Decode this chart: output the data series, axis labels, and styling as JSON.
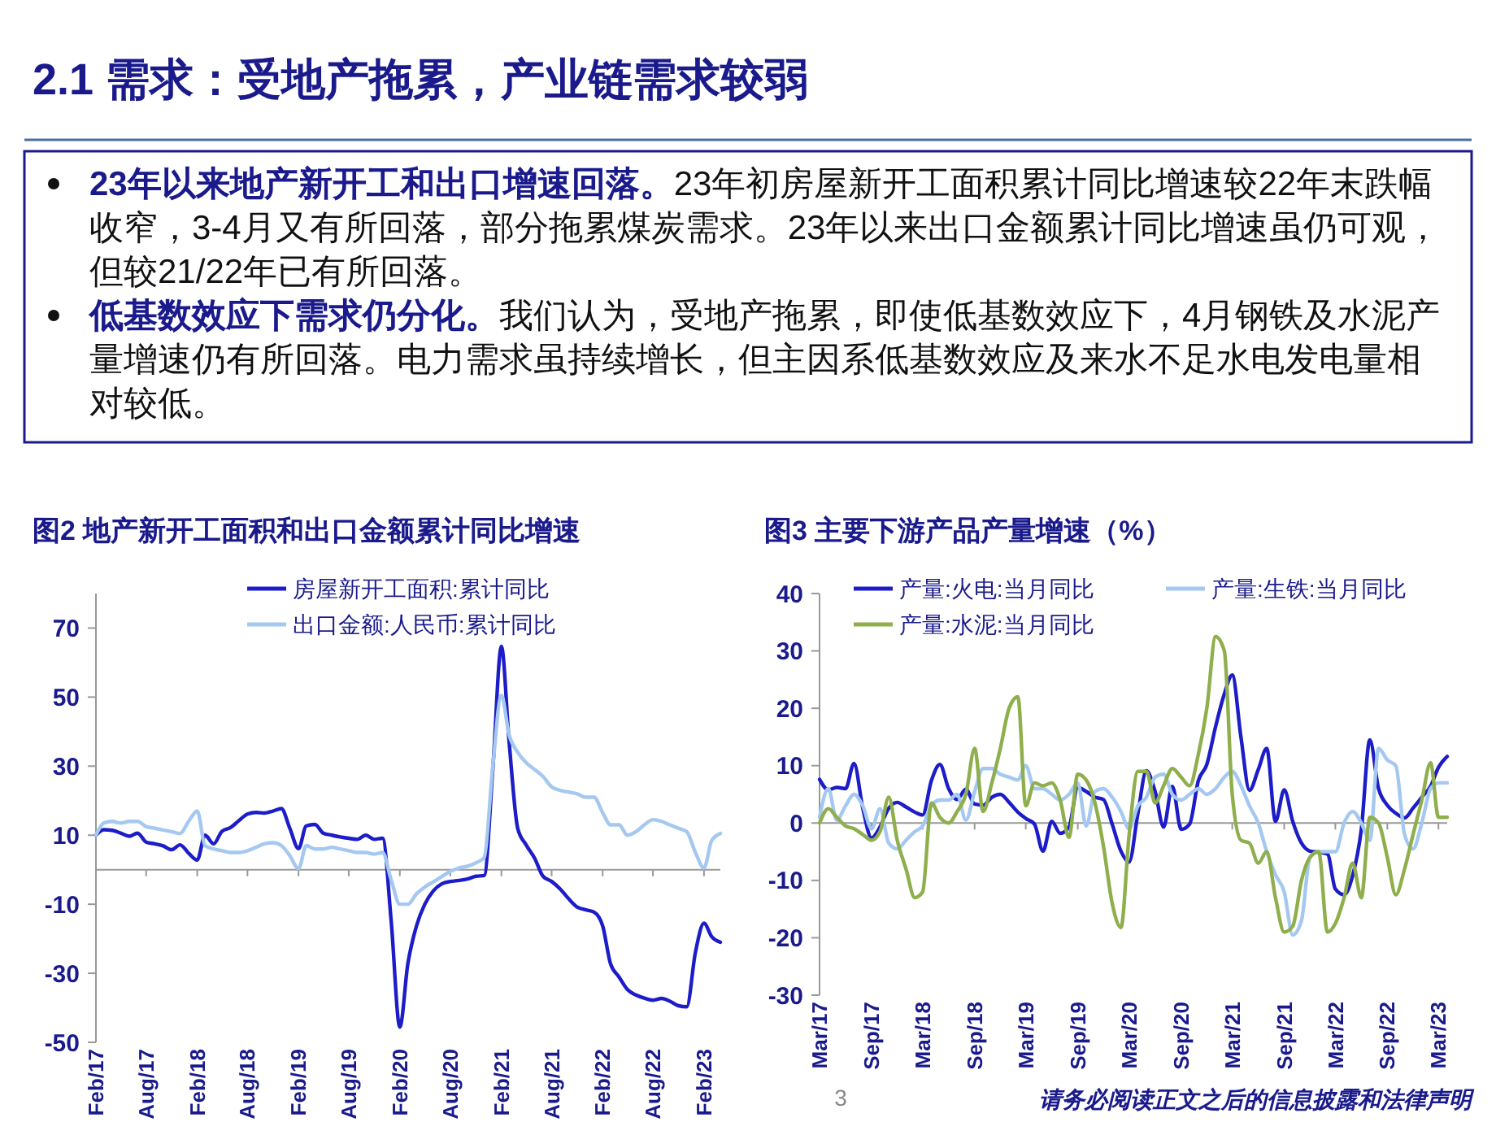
{
  "chart_data": [
    {
      "type": "other",
      "title": "2.1 需求：受地产拖累，产业链需求较弱",
      "annotations": [
        "23年以来地产新开工和出口增速回落。",
        "23年初房屋新开工面积累计同比增速较22年末跌幅收窄，3-4月又有所回落，部分拖累煤炭需求。23年以来出口金额累计同比增速虽仍可观，但较21/22年已有所回落。",
        "低基数效应下需求仍分化。",
        "我们认为，受地产拖累，即使低基数效应下，4月钢铁及水泥产量增速仍有所回落。电力需求虽持续增长，但主因系低基数效应及来水不足水电发电量相对较低。",
        "3",
        "请务必阅读正文之后的信息披露和法律声明"
      ]
    },
    {
      "type": "line",
      "title": "图2 地产新开工面积和出口金额累计同比增速",
      "legend": "top",
      "xlim": [
        "2017-02",
        "2023-04"
      ],
      "ylim": [
        -50,
        80
      ],
      "yticks": [
        -50,
        -30,
        -10,
        10,
        30,
        50,
        70
      ],
      "xticks": [
        {
          "value": "2017-02",
          "label": "Feb/17"
        },
        {
          "value": "2017-08",
          "label": "Aug/17"
        },
        {
          "value": "2018-02",
          "label": "Feb/18"
        },
        {
          "value": "2018-08",
          "label": "Aug/18"
        },
        {
          "value": "2019-02",
          "label": "Feb/19"
        },
        {
          "value": "2019-08",
          "label": "Aug/19"
        },
        {
          "value": "2020-02",
          "label": "Feb/20"
        },
        {
          "value": "2020-08",
          "label": "Aug/20"
        },
        {
          "value": "2021-02",
          "label": "Feb/21"
        },
        {
          "value": "2021-08",
          "label": "Aug/21"
        },
        {
          "value": "2022-02",
          "label": "Feb/22"
        },
        {
          "value": "2022-08",
          "label": "Aug/22"
        },
        {
          "value": "2023-02",
          "label": "Feb/23"
        }
      ],
      "x": [
        "2017-02",
        "2017-03",
        "2017-04",
        "2017-05",
        "2017-06",
        "2017-07",
        "2017-08",
        "2017-09",
        "2017-10",
        "2017-11",
        "2017-12",
        "2018-01",
        "2018-02",
        "2018-03",
        "2018-04",
        "2018-05",
        "2018-06",
        "2018-07",
        "2018-08",
        "2018-09",
        "2018-10",
        "2018-11",
        "2018-12",
        "2019-01",
        "2019-02",
        "2019-03",
        "2019-04",
        "2019-05",
        "2019-06",
        "2019-07",
        "2019-08",
        "2019-09",
        "2019-10",
        "2019-11",
        "2019-12",
        "2020-01",
        "2020-02",
        "2020-03",
        "2020-04",
        "2020-05",
        "2020-06",
        "2020-07",
        "2020-08",
        "2020-09",
        "2020-10",
        "2020-11",
        "2020-12",
        "2021-01",
        "2021-02",
        "2021-03",
        "2021-04",
        "2021-05",
        "2021-06",
        "2021-07",
        "2021-08",
        "2021-09",
        "2021-10",
        "2021-11",
        "2021-12",
        "2022-01",
        "2022-02",
        "2022-03",
        "2022-04",
        "2022-05",
        "2022-06",
        "2022-07",
        "2022-08",
        "2022-09",
        "2022-10",
        "2022-11",
        "2022-12",
        "2023-01",
        "2023-02",
        "2023-03",
        "2023-04"
      ],
      "series": [
        {
          "name": "房屋新开工面积:累计同比",
          "color": "#1c1cc8",
          "values": [
            10,
            11.6,
            11.4,
            10.6,
            9.7,
            10.6,
            8,
            7.5,
            6.9,
            5.8,
            7.2,
            4.8,
            2.8,
            10,
            7.5,
            11.1,
            12.2,
            14.2,
            16.1,
            16.6,
            16.4,
            17,
            17.7,
            11.9,
            6.1,
            12.7,
            13.1,
            10.6,
            10,
            9.5,
            9.1,
            8.8,
            10,
            8.8,
            9.1,
            -15,
            -45.6,
            -27.2,
            -16.3,
            -10,
            -6.1,
            -4.1,
            -3.4,
            -3.1,
            -2.7,
            -1.9,
            -1.7,
            29,
            64.7,
            36.9,
            11.9,
            7.2,
            3.3,
            -1.9,
            -3.4,
            -5.6,
            -8.4,
            -10.8,
            -11.6,
            -12.3,
            -16.3,
            -27.2,
            -31.1,
            -34.7,
            -36.3,
            -37.2,
            -37.8,
            -37.3,
            -38.1,
            -39.4,
            -39.7,
            -24,
            -15.5,
            -19.4,
            -21
          ]
        },
        {
          "name": "出口金额:人民币:累计同比",
          "color": "#a4c8f0",
          "values": [
            10,
            13.5,
            14,
            13.5,
            14,
            14,
            12.5,
            12,
            11.5,
            11,
            10.5,
            14,
            17,
            7,
            6,
            5.5,
            5,
            5,
            5.5,
            6.5,
            7.5,
            7.8,
            7,
            4,
            0.3,
            7,
            6,
            6,
            6.5,
            6,
            5.5,
            5,
            5,
            4.5,
            5,
            -3,
            -10,
            -10,
            -7,
            -5,
            -3.5,
            -2,
            -0.5,
            0.5,
            1,
            2,
            3.5,
            30,
            50.5,
            39,
            34,
            31,
            29,
            27,
            24,
            23,
            22.5,
            22,
            21,
            21,
            16.5,
            13,
            13,
            10,
            11,
            13,
            14.5,
            14,
            13,
            12,
            11,
            5,
            0.5,
            8.5,
            10.5
          ]
        }
      ]
    },
    {
      "type": "line",
      "title": "图3 主要下游产品产量增速（%）",
      "legend": "top",
      "xlim": [
        "2017-03",
        "2023-04"
      ],
      "ylim": [
        -30,
        40
      ],
      "yticks": [
        -30,
        -20,
        -10,
        0,
        10,
        20,
        30,
        40
      ],
      "xticks": [
        {
          "value": "2017-03",
          "label": "Mar/17"
        },
        {
          "value": "2017-09",
          "label": "Sep/17"
        },
        {
          "value": "2018-03",
          "label": "Mar/18"
        },
        {
          "value": "2018-09",
          "label": "Sep/18"
        },
        {
          "value": "2019-03",
          "label": "Mar/19"
        },
        {
          "value": "2019-09",
          "label": "Sep/19"
        },
        {
          "value": "2020-03",
          "label": "Mar/20"
        },
        {
          "value": "2020-09",
          "label": "Sep/20"
        },
        {
          "value": "2021-03",
          "label": "Mar/21"
        },
        {
          "value": "2021-09",
          "label": "Sep/21"
        },
        {
          "value": "2022-03",
          "label": "Mar/22"
        },
        {
          "value": "2022-09",
          "label": "Sep/22"
        },
        {
          "value": "2023-03",
          "label": "Mar/23"
        }
      ],
      "x": [
        "2017-03",
        "2017-04",
        "2017-05",
        "2017-06",
        "2017-07",
        "2017-08",
        "2017-09",
        "2017-10",
        "2017-11",
        "2017-12",
        "2018-01",
        "2018-02",
        "2018-03",
        "2018-04",
        "2018-05",
        "2018-06",
        "2018-07",
        "2018-08",
        "2018-09",
        "2018-10",
        "2018-11",
        "2018-12",
        "2019-01",
        "2019-02",
        "2019-03",
        "2019-04",
        "2019-05",
        "2019-06",
        "2019-07",
        "2019-08",
        "2019-09",
        "2019-10",
        "2019-11",
        "2019-12",
        "2020-01",
        "2020-02",
        "2020-03",
        "2020-04",
        "2020-05",
        "2020-06",
        "2020-07",
        "2020-08",
        "2020-09",
        "2020-10",
        "2020-11",
        "2020-12",
        "2021-01",
        "2021-02",
        "2021-03",
        "2021-04",
        "2021-05",
        "2021-06",
        "2021-07",
        "2021-08",
        "2021-09",
        "2021-10",
        "2021-11",
        "2021-12",
        "2022-01",
        "2022-02",
        "2022-03",
        "2022-04",
        "2022-05",
        "2022-06",
        "2022-07",
        "2022-08",
        "2022-09",
        "2022-10",
        "2022-11",
        "2022-12",
        "2023-01",
        "2023-02",
        "2023-03",
        "2023-04"
      ],
      "series": [
        {
          "name": "产量:火电:当月同比",
          "color": "#1c1cc8",
          "values": [
            7.6,
            5.8,
            6.2,
            6,
            10.4,
            2.6,
            -2.6,
            -0.7,
            2.6,
            3.6,
            2.8,
            1.9,
            1.4,
            7.4,
            10.2,
            6,
            4.1,
            5.9,
            3.3,
            3.1,
            4.5,
            5,
            3.6,
            1.9,
            0.8,
            -0.2,
            -4.9,
            0.3,
            -1.8,
            -0.7,
            6.2,
            5.5,
            4.5,
            4.1,
            -0.2,
            -4.9,
            -6.8,
            1.7,
            9.1,
            5.5,
            -0.7,
            6.4,
            -1.1,
            -0.2,
            7.4,
            10.2,
            16.8,
            22.5,
            25.8,
            14.9,
            5.7,
            9.3,
            13,
            0.3,
            5.8,
            0.3,
            -3.5,
            -4.9,
            -5.1,
            -5.4,
            -11.5,
            -12.5,
            -9.2,
            -1.1,
            14.5,
            6,
            3.1,
            1.7,
            0.9,
            2.6,
            4.5,
            6.4,
            9.7,
            11.6
          ]
        },
        {
          "name": "产量:生铁:当月同比",
          "color": "#a4c8f0",
          "values": [
            1,
            6,
            0.5,
            3,
            5,
            3,
            -1,
            2.5,
            -3.5,
            -4.5,
            -3,
            -1.5,
            -0.5,
            3,
            4,
            4,
            5,
            0.5,
            5.5,
            9.5,
            9.5,
            8.5,
            8,
            7.5,
            10,
            6,
            6,
            5,
            4,
            5,
            7,
            -0.5,
            5.5,
            6,
            4.5,
            2,
            -1,
            3,
            4.5,
            8,
            8.5,
            5,
            4,
            5,
            6,
            5,
            6,
            8,
            9,
            6.5,
            3,
            0,
            -5,
            -9,
            -12,
            -19.5,
            -17,
            -6,
            -5,
            -5,
            -5,
            0,
            2,
            0,
            -3,
            13,
            11,
            10,
            -2,
            -4.5,
            0,
            6,
            7,
            7
          ]
        },
        {
          "name": "产量:水泥:当月同比",
          "color": "#8fae4c",
          "values": [
            0,
            2.5,
            1,
            -0.5,
            -1,
            -2,
            -3,
            -1.5,
            4.5,
            -3,
            -8,
            -13,
            -12,
            3.5,
            1,
            0,
            2,
            5,
            13,
            2,
            7,
            13,
            20,
            22,
            3,
            7,
            6.5,
            7,
            4,
            -2.5,
            8.5,
            7.5,
            3.5,
            -4,
            -14,
            -18.2,
            -2,
            9,
            9,
            3.5,
            6.5,
            9.5,
            8,
            6.5,
            12,
            20,
            32.5,
            30,
            5,
            -3,
            -3.5,
            -7,
            -5,
            -13,
            -19,
            -18,
            -10,
            -6,
            -5,
            -19,
            -17.5,
            -13,
            -7,
            -13,
            1,
            0,
            -6,
            -12.5,
            -8,
            -2,
            4,
            10.5,
            1,
            1
          ]
        }
      ]
    }
  ]
}
